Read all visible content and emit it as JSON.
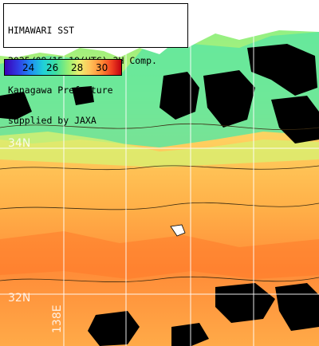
{
  "title": {
    "line1": "HIMAWARI SST",
    "line2": "2025/09/15 19(UTC) 3H Comp.",
    "line3": "Kanagawa Prefecture",
    "line4": "supplied by JAXA"
  },
  "colorbar": {
    "ticks": [
      "24",
      "26",
      "28",
      "30"
    ]
  },
  "grid_labels": {
    "lat_upper": "34N",
    "lat_lower": "32N",
    "lon": "138E"
  },
  "colors": {
    "land": "#ffffff",
    "cloud_mask": "#000000",
    "warm_sea": "#ff9a3c",
    "cool_sea": "#5ee69a",
    "grid": "#ffffff"
  }
}
